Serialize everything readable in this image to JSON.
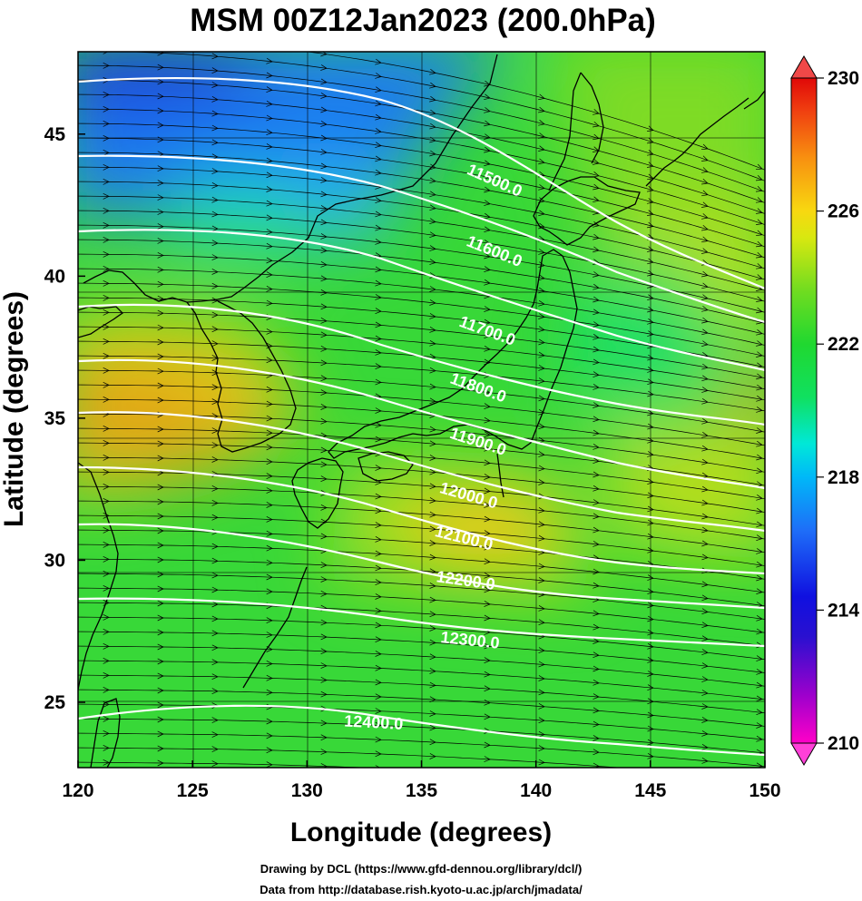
{
  "title": "MSM 00Z12Jan2023 (200.0hPa)",
  "x_axis": {
    "label": "Longitude (degrees)",
    "range": [
      120,
      150
    ],
    "ticks": [
      120,
      125,
      130,
      135,
      140,
      145,
      150
    ]
  },
  "y_axis": {
    "label": "Latitude  (degrees)",
    "range": [
      22.7,
      47.9
    ],
    "ticks": [
      25,
      30,
      35,
      40,
      45
    ]
  },
  "colorbar": {
    "range": [
      210,
      230
    ],
    "ticks": [
      230,
      226,
      222,
      218,
      214,
      210
    ],
    "colors": [
      "#ff00c8",
      "#8a00d0",
      "#1a00d8",
      "#1040e8",
      "#1e90ff",
      "#00e0f0",
      "#10e060",
      "#30d030",
      "#a0e020",
      "#f0e010",
      "#f8a010",
      "#f05010",
      "#e00000"
    ]
  },
  "contours": {
    "color": "#ffffff",
    "labels": [
      {
        "text": "11500.0",
        "lon": 138.1,
        "lat": 43.2,
        "angle": 24
      },
      {
        "text": "11600.0",
        "lon": 138.1,
        "lat": 40.7,
        "angle": 22
      },
      {
        "text": "11700.0",
        "lon": 137.8,
        "lat": 37.9,
        "angle": 20
      },
      {
        "text": "11800.0",
        "lon": 137.4,
        "lat": 35.9,
        "angle": 20
      },
      {
        "text": "11900.0",
        "lon": 137.4,
        "lat": 34.0,
        "angle": 18
      },
      {
        "text": "12000.0",
        "lon": 137.0,
        "lat": 32.1,
        "angle": 16
      },
      {
        "text": "12100.0",
        "lon": 136.8,
        "lat": 30.6,
        "angle": 14
      },
      {
        "text": "12200.0",
        "lon": 136.9,
        "lat": 29.1,
        "angle": 8
      },
      {
        "text": "12300.0",
        "lon": 137.1,
        "lat": 27.0,
        "angle": 6
      },
      {
        "text": "12400.0",
        "lon": 132.9,
        "lat": 24.1,
        "angle": 3
      }
    ]
  },
  "credits": {
    "line1": "Drawing by DCL (https://www.gfd-dennou.org/library/dcl/)",
    "line2": "Data from http://database.rish.kyoto-u.ac.jp/arch/jmadata/"
  }
}
